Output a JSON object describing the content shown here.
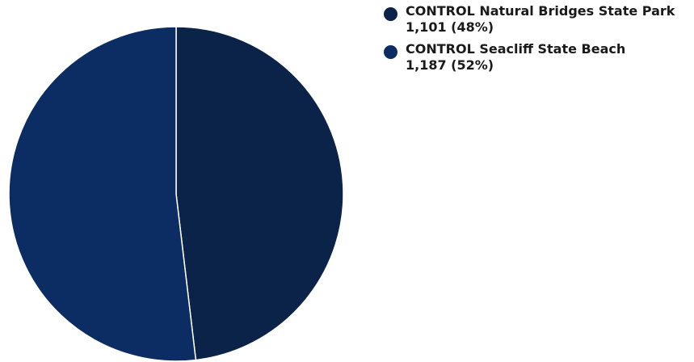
{
  "chart_data": {
    "type": "pie",
    "title": "",
    "legend_position": "top-right",
    "slices": [
      {
        "label": "CONTROL Natural Bridges State Park",
        "value": 1101,
        "display_value": "1,101 (48%)",
        "color": "#0b2249"
      },
      {
        "label": "CONTROL Seacliff State Beach",
        "value": 1187,
        "display_value": "1,187 (52%)",
        "color": "#0b2d63"
      }
    ],
    "slice_border_color": "#ffffff"
  }
}
